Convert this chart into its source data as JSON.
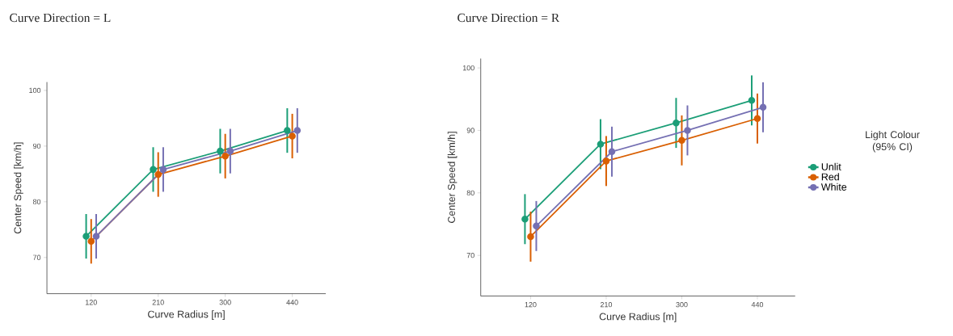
{
  "chart_data": [
    {
      "type": "line",
      "title": "Curve Direction = L",
      "xlabel": "Curve Radius [m]",
      "ylabel": "Center Speed [km/h]",
      "categories": [
        "120",
        "210",
        "300",
        "440"
      ],
      "ylim": [
        63.5,
        101.5
      ],
      "yticks": [
        70,
        80,
        90,
        100
      ],
      "marker": "circle",
      "legend": false,
      "series": [
        {
          "color": "#1b9e77",
          "values": [
            73.8,
            85.8,
            89.1,
            92.8
          ],
          "errors": [
            4,
            4,
            4,
            4
          ]
        },
        {
          "color": "#d95f02",
          "values": [
            72.9,
            84.9,
            88.2,
            91.8
          ],
          "errors": [
            4,
            4,
            4,
            4
          ]
        },
        {
          "color": "#7570b3",
          "values": [
            73.8,
            85.8,
            89.1,
            92.8
          ],
          "errors": [
            4,
            4,
            4,
            4
          ]
        }
      ]
    },
    {
      "type": "line",
      "title": "Curve Direction = R",
      "xlabel": "Curve Radius [m]",
      "ylabel": "Center Speed [km/h]",
      "categories": [
        "120",
        "210",
        "300",
        "440"
      ],
      "ylim": [
        63.5,
        101.5
      ],
      "yticks": [
        70,
        80,
        90,
        100
      ],
      "marker": "circle",
      "legend": "right",
      "legend_title": "Light Colour (95% CI)",
      "series": [
        {
          "name": "Unlit",
          "color": "#1b9e77",
          "values": [
            75.8,
            87.8,
            91.2,
            94.8
          ],
          "errors": [
            4,
            4,
            4,
            4
          ]
        },
        {
          "name": "Red",
          "color": "#d95f02",
          "values": [
            73.0,
            85.1,
            88.4,
            91.9
          ],
          "errors": [
            4,
            4,
            4,
            4
          ]
        },
        {
          "name": "White",
          "color": "#7570b3",
          "values": [
            74.7,
            86.6,
            90.0,
            93.7
          ],
          "errors": [
            4,
            4,
            4,
            4
          ]
        }
      ]
    }
  ]
}
